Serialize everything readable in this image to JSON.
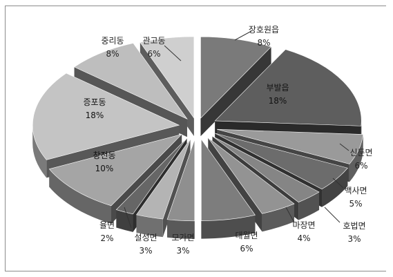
{
  "chart_data": {
    "type": "pie",
    "style": "3d-exploded",
    "unit": "%",
    "slices": [
      {
        "name": "장호원읍",
        "value": 8,
        "color": "#7a7a7a"
      },
      {
        "name": "부발읍",
        "value": 18,
        "color": "#5e5e5e"
      },
      {
        "name": "신둔면",
        "value": 6,
        "color": "#9a9a9a"
      },
      {
        "name": "백사면",
        "value": 5,
        "color": "#6c6c6c"
      },
      {
        "name": "호법면",
        "value": 3,
        "color": "#858585"
      },
      {
        "name": "마장면",
        "value": 4,
        "color": "#939393"
      },
      {
        "name": "대월면",
        "value": 6,
        "color": "#7d7d7d"
      },
      {
        "name": "모가면",
        "value": 3,
        "color": "#8f8f8f"
      },
      {
        "name": "설성면",
        "value": 3,
        "color": "#b4b4b4"
      },
      {
        "name": "율면",
        "value": 2,
        "color": "#666666"
      },
      {
        "name": "창전동",
        "value": 10,
        "color": "#a5a5a5"
      },
      {
        "name": "증포동",
        "value": 18,
        "color": "#c4c4c4"
      },
      {
        "name": "중리동",
        "value": 8,
        "color": "#bebebe"
      },
      {
        "name": "관고동",
        "value": 6,
        "color": "#cfcfcf"
      }
    ]
  }
}
